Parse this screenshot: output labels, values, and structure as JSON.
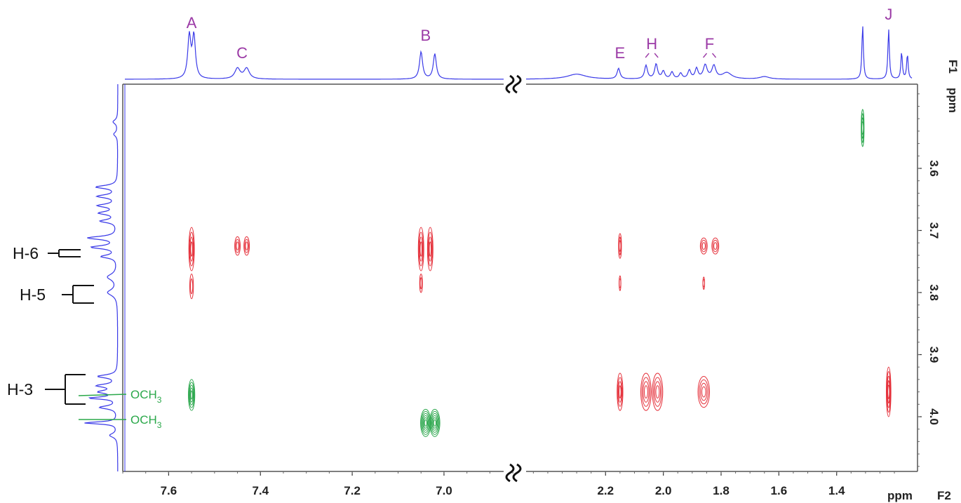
{
  "chart_data": {
    "type": "2D NMR",
    "f2_axis": {
      "unit_label": "ppm",
      "axis_name": "F2",
      "segments": [
        {
          "range": [
            7.7,
            6.85
          ],
          "ticks": [
            "7.6",
            "7.4",
            "7.2",
            "7.0"
          ],
          "tick_values": [
            7.6,
            7.4,
            7.2,
            7.0
          ]
        },
        {
          "range": [
            2.45,
            1.2
          ],
          "ticks": [
            "2.2",
            "2.0",
            "1.8",
            "1.6",
            "1.4"
          ],
          "tick_values": [
            2.2,
            2.0,
            1.8,
            1.6,
            1.4
          ]
        }
      ]
    },
    "f1_axis": {
      "unit_label": "ppm",
      "axis_name": "F1",
      "range": [
        3.48,
        4.09
      ],
      "ticks": [
        "3.6",
        "3.7",
        "3.8",
        "3.9",
        "4.0"
      ],
      "tick_values": [
        3.6,
        3.7,
        3.8,
        3.9,
        4.0
      ]
    },
    "top_peak_labels": [
      {
        "label": "A",
        "ppm": 7.55
      },
      {
        "label": "C",
        "ppm": 7.44
      },
      {
        "label": "B",
        "ppm": 7.04
      },
      {
        "label": "E",
        "ppm": 2.15
      },
      {
        "label": "H",
        "ppm": 2.04
      },
      {
        "label": "F",
        "ppm": 1.84
      },
      {
        "label": "J",
        "ppm": 1.22
      }
    ],
    "left_assignments": [
      {
        "label": "H-6",
        "f1": 3.725
      },
      {
        "label": "H-5",
        "f1": 3.785
      },
      {
        "label": "H-3",
        "f1": 3.955
      }
    ],
    "och3_labels": [
      {
        "label": "OCH",
        "sub": "3",
        "f1": 3.97
      },
      {
        "label": "OCH",
        "sub": "3",
        "f1": 4.01
      }
    ],
    "cross_peaks": [
      {
        "f2": 7.55,
        "f1": 3.73,
        "phase": "negative",
        "w": 0.006,
        "h": 0.035,
        "n": 4
      },
      {
        "f2": 7.55,
        "f1": 3.79,
        "phase": "negative",
        "w": 0.004,
        "h": 0.02,
        "n": 2
      },
      {
        "f2": 7.45,
        "f1": 3.725,
        "phase": "negative",
        "w": 0.006,
        "h": 0.015,
        "n": 3
      },
      {
        "f2": 7.43,
        "f1": 3.725,
        "phase": "negative",
        "w": 0.006,
        "h": 0.015,
        "n": 3
      },
      {
        "f2": 7.05,
        "f1": 3.73,
        "phase": "negative",
        "w": 0.006,
        "h": 0.035,
        "n": 4
      },
      {
        "f2": 7.03,
        "f1": 3.73,
        "phase": "negative",
        "w": 0.006,
        "h": 0.035,
        "n": 4
      },
      {
        "f2": 7.05,
        "f1": 3.785,
        "phase": "negative",
        "w": 0.003,
        "h": 0.015,
        "n": 2
      },
      {
        "f2": 2.15,
        "f1": 3.725,
        "phase": "negative",
        "w": 0.005,
        "h": 0.02,
        "n": 3
      },
      {
        "f2": 2.15,
        "f1": 3.785,
        "phase": "negative",
        "w": 0.003,
        "h": 0.012,
        "n": 2
      },
      {
        "f2": 1.86,
        "f1": 3.725,
        "phase": "negative",
        "w": 0.012,
        "h": 0.013,
        "n": 3
      },
      {
        "f2": 1.82,
        "f1": 3.725,
        "phase": "negative",
        "w": 0.012,
        "h": 0.013,
        "n": 3
      },
      {
        "f2": 1.86,
        "f1": 3.785,
        "phase": "negative",
        "w": 0.003,
        "h": 0.01,
        "n": 2
      },
      {
        "f2": 2.15,
        "f1": 3.96,
        "phase": "negative",
        "w": 0.01,
        "h": 0.03,
        "n": 4
      },
      {
        "f2": 2.06,
        "f1": 3.96,
        "phase": "negative",
        "w": 0.018,
        "h": 0.03,
        "n": 4
      },
      {
        "f2": 2.02,
        "f1": 3.96,
        "phase": "negative",
        "w": 0.018,
        "h": 0.03,
        "n": 4
      },
      {
        "f2": 1.86,
        "f1": 3.96,
        "phase": "negative",
        "w": 0.02,
        "h": 0.025,
        "n": 4
      },
      {
        "f2": 1.22,
        "f1": 3.96,
        "phase": "negative",
        "w": 0.008,
        "h": 0.04,
        "n": 5
      },
      {
        "f2": 7.55,
        "f1": 3.965,
        "phase": "positive",
        "w": 0.007,
        "h": 0.025,
        "n": 5
      },
      {
        "f2": 7.04,
        "f1": 4.01,
        "phase": "positive",
        "w": 0.011,
        "h": 0.022,
        "n": 6
      },
      {
        "f2": 7.02,
        "f1": 4.01,
        "phase": "positive",
        "w": 0.011,
        "h": 0.022,
        "n": 6
      },
      {
        "f2": 1.31,
        "f1": 3.535,
        "phase": "positive",
        "w": 0.005,
        "h": 0.03,
        "n": 4
      }
    ],
    "f2_projection_peaks": [
      {
        "ppm": 7.555,
        "height": 1.0,
        "width": 0.004
      },
      {
        "ppm": 7.545,
        "height": 1.0,
        "width": 0.004
      },
      {
        "ppm": 7.45,
        "height": 0.25,
        "width": 0.007
      },
      {
        "ppm": 7.43,
        "height": 0.25,
        "width": 0.007
      },
      {
        "ppm": 7.05,
        "height": 0.65,
        "width": 0.004
      },
      {
        "ppm": 7.02,
        "height": 0.6,
        "width": 0.004
      },
      {
        "ppm": 2.3,
        "height": 0.12,
        "width": 0.04
      },
      {
        "ppm": 2.155,
        "height": 0.25,
        "width": 0.006
      },
      {
        "ppm": 2.06,
        "height": 0.32,
        "width": 0.006
      },
      {
        "ppm": 2.025,
        "height": 0.35,
        "width": 0.006
      },
      {
        "ppm": 2.0,
        "height": 0.18,
        "width": 0.006
      },
      {
        "ppm": 1.97,
        "height": 0.16,
        "width": 0.006
      },
      {
        "ppm": 1.94,
        "height": 0.13,
        "width": 0.006
      },
      {
        "ppm": 1.91,
        "height": 0.2,
        "width": 0.006
      },
      {
        "ppm": 1.885,
        "height": 0.24,
        "width": 0.006
      },
      {
        "ppm": 1.855,
        "height": 0.32,
        "width": 0.008
      },
      {
        "ppm": 1.825,
        "height": 0.3,
        "width": 0.008
      },
      {
        "ppm": 1.78,
        "height": 0.15,
        "width": 0.02
      },
      {
        "ppm": 1.65,
        "height": 0.06,
        "width": 0.02
      },
      {
        "ppm": 1.31,
        "height": 1.3,
        "width": 0.003
      },
      {
        "ppm": 1.22,
        "height": 1.2,
        "width": 0.003
      },
      {
        "ppm": 1.175,
        "height": 0.65,
        "width": 0.003
      },
      {
        "ppm": 1.155,
        "height": 0.6,
        "width": 0.003
      }
    ],
    "f1_projection_peaks": [
      {
        "ppm": 3.525,
        "height": 0.12,
        "width": 0.004
      },
      {
        "ppm": 3.545,
        "height": 0.1,
        "width": 0.004
      },
      {
        "ppm": 3.63,
        "height": 0.55,
        "width": 0.003
      },
      {
        "ppm": 3.645,
        "height": 0.5,
        "width": 0.003
      },
      {
        "ppm": 3.66,
        "height": 0.48,
        "width": 0.003
      },
      {
        "ppm": 3.672,
        "height": 0.45,
        "width": 0.003
      },
      {
        "ppm": 3.685,
        "height": 0.42,
        "width": 0.003
      },
      {
        "ppm": 3.712,
        "height": 0.75,
        "width": 0.003
      },
      {
        "ppm": 3.727,
        "height": 0.65,
        "width": 0.003
      },
      {
        "ppm": 3.742,
        "height": 0.4,
        "width": 0.003
      },
      {
        "ppm": 3.775,
        "height": 0.25,
        "width": 0.006
      },
      {
        "ppm": 3.8,
        "height": 0.25,
        "width": 0.006
      },
      {
        "ppm": 3.935,
        "height": 0.5,
        "width": 0.003
      },
      {
        "ppm": 3.95,
        "height": 0.5,
        "width": 0.003
      },
      {
        "ppm": 3.96,
        "height": 0.45,
        "width": 0.003
      },
      {
        "ppm": 3.97,
        "height": 0.7,
        "width": 0.002
      },
      {
        "ppm": 3.985,
        "height": 0.45,
        "width": 0.003
      },
      {
        "ppm": 4.01,
        "height": 0.85,
        "width": 0.002
      },
      {
        "ppm": 4.03,
        "height": 0.2,
        "width": 0.004
      }
    ],
    "colors": {
      "negative_contour": "#e5303a",
      "positive_contour": "#2ea84f",
      "projection": "#3a3ae8",
      "peak_label": "#9b3aa6",
      "assign_label": "#111111",
      "och3_label": "#2aa84a"
    }
  }
}
